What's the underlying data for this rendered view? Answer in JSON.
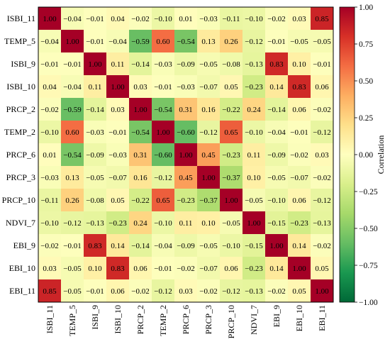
{
  "chart_data": {
    "type": "heatmap",
    "title": "",
    "rows": [
      "ISBI_11",
      "TEMP_5",
      "ISBI_9",
      "ISBI_10",
      "PRCP_2",
      "TEMP_2",
      "PRCP_6",
      "PRCP_3",
      "PRCP_10",
      "NDVI_7",
      "EBI_9",
      "EBI_10",
      "EBI_11"
    ],
    "columns": [
      "ISBI_11",
      "TEMP_5",
      "ISBI_9",
      "ISBI_10",
      "PRCP_2",
      "TEMP_2",
      "PRCP_6",
      "PRCP_3",
      "PRCP_10",
      "NDVI_7",
      "EBI_9",
      "EBI_10",
      "EBI_11"
    ],
    "values": [
      [
        1.0,
        -0.04,
        -0.01,
        0.04,
        -0.02,
        -0.1,
        0.01,
        -0.03,
        -0.11,
        -0.1,
        -0.02,
        0.03,
        0.85
      ],
      [
        -0.04,
        1.0,
        -0.01,
        -0.04,
        -0.59,
        0.6,
        -0.54,
        0.13,
        0.26,
        -0.12,
        -0.01,
        -0.05,
        -0.05
      ],
      [
        -0.01,
        -0.01,
        1.0,
        0.11,
        -0.14,
        -0.03,
        -0.09,
        -0.05,
        -0.08,
        -0.13,
        0.83,
        0.1,
        -0.01
      ],
      [
        0.04,
        -0.04,
        0.11,
        1.0,
        0.03,
        -0.01,
        -0.03,
        -0.07,
        0.05,
        -0.23,
        0.14,
        0.83,
        0.06
      ],
      [
        -0.02,
        -0.59,
        -0.14,
        0.03,
        1.0,
        -0.54,
        0.31,
        0.16,
        -0.22,
        0.24,
        -0.14,
        0.06,
        -0.02
      ],
      [
        -0.1,
        0.6,
        -0.03,
        -0.01,
        -0.54,
        1.0,
        -0.6,
        -0.12,
        0.65,
        -0.1,
        -0.04,
        -0.01,
        -0.12
      ],
      [
        0.01,
        -0.54,
        -0.09,
        -0.03,
        0.31,
        -0.6,
        1.0,
        0.45,
        -0.23,
        0.11,
        -0.09,
        -0.02,
        0.03
      ],
      [
        -0.03,
        0.13,
        -0.05,
        -0.07,
        0.16,
        -0.12,
        0.45,
        1.0,
        -0.37,
        0.1,
        -0.05,
        -0.07,
        -0.02
      ],
      [
        -0.11,
        0.26,
        -0.08,
        0.05,
        -0.22,
        0.65,
        -0.23,
        -0.37,
        1.0,
        -0.05,
        -0.1,
        0.06,
        -0.12
      ],
      [
        -0.1,
        -0.12,
        -0.13,
        -0.23,
        0.24,
        -0.1,
        0.11,
        0.1,
        -0.05,
        1.0,
        -0.15,
        -0.23,
        -0.13
      ],
      [
        -0.02,
        -0.01,
        0.83,
        0.14,
        -0.14,
        -0.04,
        -0.09,
        -0.05,
        -0.1,
        -0.15,
        1.0,
        0.14,
        -0.02
      ],
      [
        0.03,
        -0.05,
        0.1,
        0.83,
        0.06,
        -0.01,
        -0.02,
        -0.07,
        0.06,
        -0.23,
        0.14,
        1.0,
        0.05
      ],
      [
        0.85,
        -0.05,
        -0.01,
        0.06,
        -0.02,
        -0.12,
        0.03,
        -0.02,
        -0.12,
        -0.13,
        -0.02,
        0.05,
        1.0
      ]
    ],
    "value_range": [
      -1.0,
      1.0
    ],
    "colorbar": {
      "label": "Correlation",
      "ticks": [
        1.0,
        0.75,
        0.5,
        0.25,
        0.0,
        -0.25,
        -0.5,
        -0.75,
        -1.0
      ],
      "tick_labels": [
        "1.00",
        "0.75",
        "0.50",
        "0.25",
        "0.00",
        "−0.25",
        "−0.50",
        "−0.75",
        "−1.00"
      ],
      "position": "right"
    },
    "colormap": {
      "name": "RdYlGn reversed",
      "stops": [
        "#006837",
        "#1a9850",
        "#66bd63",
        "#a6d96a",
        "#d9ef8b",
        "#ffffbf",
        "#fee08b",
        "#fdae61",
        "#f46d43",
        "#d73027",
        "#a50026"
      ]
    },
    "cell_labels": true,
    "grid": false
  }
}
